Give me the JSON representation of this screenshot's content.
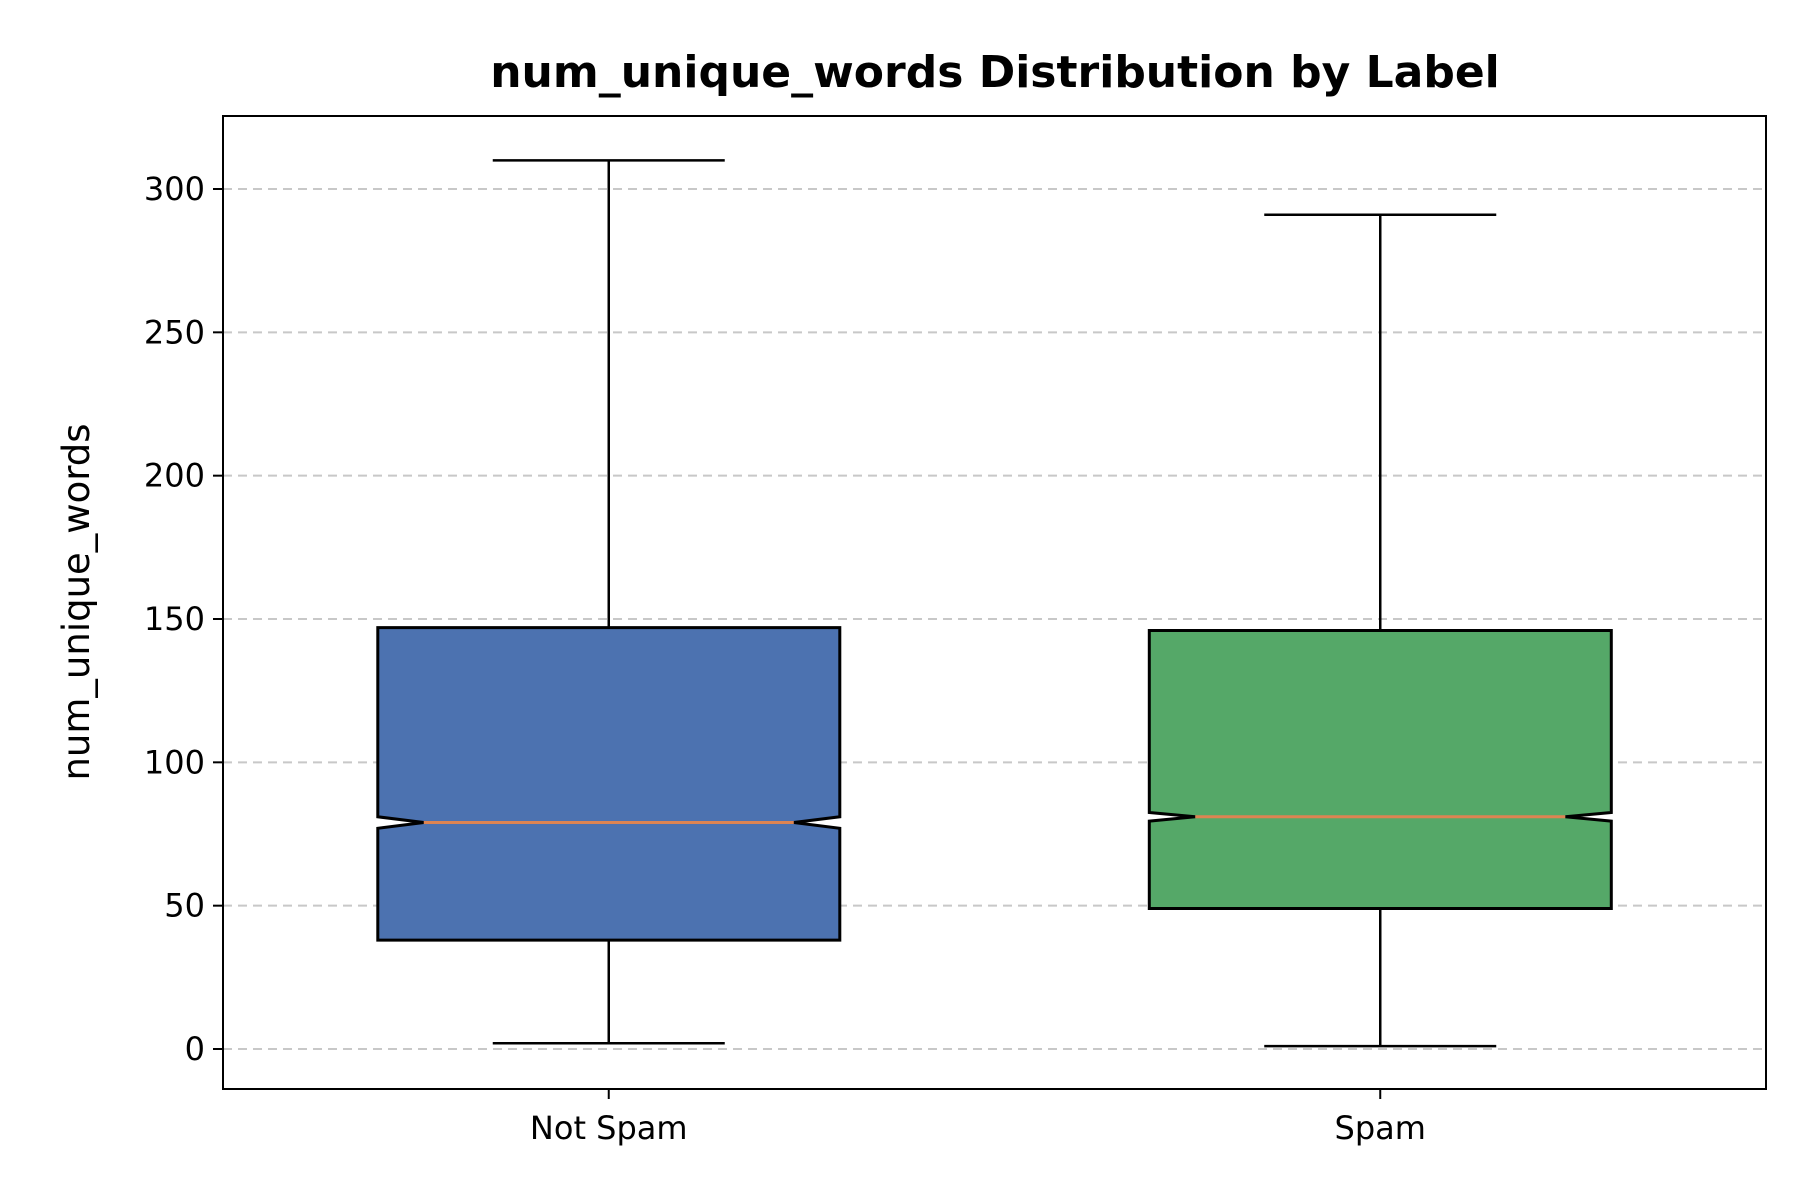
{
  "chart_data": {
    "type": "box",
    "title": "num_unique_words Distribution by Label",
    "xlabel": "",
    "ylabel": "num_unique_words",
    "ylim": [
      -14,
      325
    ],
    "yticks": [
      0,
      50,
      100,
      150,
      200,
      250,
      300
    ],
    "grid": "y-dashed",
    "notched": true,
    "categories": [
      "Not Spam",
      "Spam"
    ],
    "boxes": [
      {
        "label": "Not Spam",
        "whisker_low": 2,
        "q1": 38,
        "median": 79,
        "q3": 147,
        "whisker_high": 310,
        "notch_low": 77,
        "notch_high": 81,
        "color": "#4c72b0"
      },
      {
        "label": "Spam",
        "whisker_low": 1,
        "q1": 49,
        "median": 81,
        "q3": 146,
        "whisker_high": 291,
        "notch_low": 79.5,
        "notch_high": 82.5,
        "color": "#55a868"
      }
    ],
    "median_color": "#dd8452"
  }
}
